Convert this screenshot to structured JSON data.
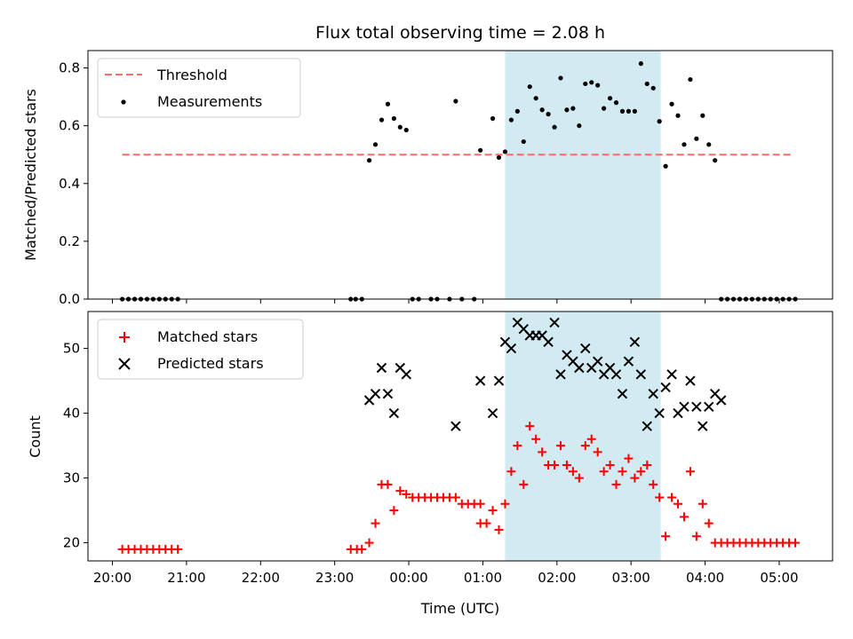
{
  "chart_data": [
    {
      "type": "scatter",
      "title": "Flux total observing time = 2.08 h",
      "xlabel": "",
      "ylabel": "Matched/Predicted stars",
      "ylim": [
        0,
        0.86
      ],
      "yticks": [
        0.0,
        0.2,
        0.4,
        0.6,
        0.8
      ],
      "ytick_labels": [
        "0.0",
        "0.2",
        "0.4",
        "0.6",
        "0.8"
      ],
      "xlim_hours": [
        19.67,
        29.72
      ],
      "highlight_span": [
        "01:18",
        "03:24"
      ],
      "highlight_color": "#add8e6",
      "legend_position": "upper-left",
      "threshold": {
        "name": "Threshold",
        "value": 0.5,
        "x_range": [
          "20:08",
          "05:12"
        ],
        "color": "#ff6b6b"
      },
      "series": [
        {
          "name": "Measurements",
          "color": "#000000",
          "points": [
            [
              "20:08",
              0
            ],
            [
              "20:13",
              0
            ],
            [
              "20:18",
              0
            ],
            [
              "20:23",
              0
            ],
            [
              "20:28",
              0
            ],
            [
              "20:33",
              0
            ],
            [
              "20:38",
              0
            ],
            [
              "20:43",
              0
            ],
            [
              "20:48",
              0
            ],
            [
              "20:53",
              0
            ],
            [
              "23:13",
              0
            ],
            [
              "23:17",
              0
            ],
            [
              "23:22",
              0
            ],
            [
              "23:28",
              0.48
            ],
            [
              "23:33",
              0.535
            ],
            [
              "23:38",
              0.62
            ],
            [
              "23:43",
              0.675
            ],
            [
              "23:48",
              0.625
            ],
            [
              "23:53",
              0.595
            ],
            [
              "23:58",
              0.585
            ],
            [
              "00:03",
              0
            ],
            [
              "00:08",
              0
            ],
            [
              "00:18",
              0
            ],
            [
              "00:23",
              0
            ],
            [
              "00:33",
              0
            ],
            [
              "00:43",
              0
            ],
            [
              "00:53",
              0
            ],
            [
              "00:38",
              0.685
            ],
            [
              "00:58",
              0.515
            ],
            [
              "01:08",
              0.625
            ],
            [
              "01:13",
              0.49
            ],
            [
              "01:18",
              0.51
            ],
            [
              "01:23",
              0.62
            ],
            [
              "01:28",
              0.65
            ],
            [
              "01:33",
              0.545
            ],
            [
              "01:38",
              0.735
            ],
            [
              "01:43",
              0.695
            ],
            [
              "01:48",
              0.655
            ],
            [
              "01:53",
              0.64
            ],
            [
              "01:58",
              0.595
            ],
            [
              "02:03",
              0.765
            ],
            [
              "02:08",
              0.655
            ],
            [
              "02:13",
              0.66
            ],
            [
              "02:18",
              0.6
            ],
            [
              "02:23",
              0.745
            ],
            [
              "02:28",
              0.75
            ],
            [
              "02:33",
              0.74
            ],
            [
              "02:38",
              0.66
            ],
            [
              "02:43",
              0.695
            ],
            [
              "02:48",
              0.68
            ],
            [
              "02:53",
              0.65
            ],
            [
              "02:58",
              0.65
            ],
            [
              "03:03",
              0.65
            ],
            [
              "03:08",
              0.815
            ],
            [
              "03:13",
              0.745
            ],
            [
              "03:18",
              0.73
            ],
            [
              "03:23",
              0.615
            ],
            [
              "03:28",
              0.46
            ],
            [
              "03:33",
              0.675
            ],
            [
              "03:38",
              0.635
            ],
            [
              "03:43",
              0.535
            ],
            [
              "03:48",
              0.76
            ],
            [
              "03:53",
              0.555
            ],
            [
              "03:58",
              0.635
            ],
            [
              "04:03",
              0.535
            ],
            [
              "04:08",
              0.48
            ],
            [
              "04:13",
              0
            ],
            [
              "04:18",
              0
            ],
            [
              "04:23",
              0
            ],
            [
              "04:28",
              0
            ],
            [
              "04:33",
              0
            ],
            [
              "04:38",
              0
            ],
            [
              "04:43",
              0
            ],
            [
              "04:48",
              0
            ],
            [
              "04:53",
              0
            ],
            [
              "04:58",
              0
            ],
            [
              "05:03",
              0
            ],
            [
              "05:08",
              0
            ],
            [
              "05:13",
              0
            ]
          ]
        }
      ]
    },
    {
      "type": "scatter",
      "title": "",
      "xlabel": "Time (UTC)",
      "ylabel": "Count",
      "ylim": [
        17.2,
        55.7
      ],
      "yticks": [
        20,
        30,
        40,
        50
      ],
      "ytick_labels": [
        "20",
        "30",
        "40",
        "50"
      ],
      "xlim_hours": [
        19.67,
        29.72
      ],
      "xticks": [
        "20:00",
        "21:00",
        "22:00",
        "23:00",
        "00:00",
        "01:00",
        "02:00",
        "03:00",
        "04:00",
        "05:00"
      ],
      "highlight_span": [
        "01:18",
        "03:24"
      ],
      "highlight_color": "#add8e6",
      "legend_position": "upper-left",
      "series": [
        {
          "name": "Matched stars",
          "marker": "plus",
          "color": "#ff0000",
          "points": [
            [
              "20:08",
              19
            ],
            [
              "20:13",
              19
            ],
            [
              "20:18",
              19
            ],
            [
              "20:23",
              19
            ],
            [
              "20:28",
              19
            ],
            [
              "20:33",
              19
            ],
            [
              "20:38",
              19
            ],
            [
              "20:43",
              19
            ],
            [
              "20:48",
              19
            ],
            [
              "20:53",
              19
            ],
            [
              "23:13",
              19
            ],
            [
              "23:18",
              19
            ],
            [
              "23:22",
              19
            ],
            [
              "23:28",
              20
            ],
            [
              "23:33",
              23
            ],
            [
              "23:38",
              29
            ],
            [
              "23:43",
              29
            ],
            [
              "23:48",
              25
            ],
            [
              "23:53",
              28
            ],
            [
              "23:58",
              27.5
            ],
            [
              "00:03",
              27
            ],
            [
              "00:08",
              27
            ],
            [
              "00:13",
              27
            ],
            [
              "00:18",
              27
            ],
            [
              "00:23",
              27
            ],
            [
              "00:28",
              27
            ],
            [
              "00:33",
              27
            ],
            [
              "00:38",
              27
            ],
            [
              "00:43",
              26
            ],
            [
              "00:48",
              26
            ],
            [
              "00:53",
              26
            ],
            [
              "00:58",
              26
            ],
            [
              "00:58",
              23
            ],
            [
              "01:03",
              23
            ],
            [
              "01:08",
              25
            ],
            [
              "01:13",
              22
            ],
            [
              "01:18",
              26
            ],
            [
              "01:23",
              31
            ],
            [
              "01:28",
              35
            ],
            [
              "01:33",
              29
            ],
            [
              "01:38",
              38
            ],
            [
              "01:43",
              36
            ],
            [
              "01:48",
              34
            ],
            [
              "01:53",
              32
            ],
            [
              "01:58",
              32
            ],
            [
              "02:03",
              35
            ],
            [
              "02:08",
              32
            ],
            [
              "02:13",
              31
            ],
            [
              "02:18",
              30
            ],
            [
              "02:23",
              35
            ],
            [
              "02:28",
              36
            ],
            [
              "02:33",
              34
            ],
            [
              "02:38",
              31
            ],
            [
              "02:43",
              32
            ],
            [
              "02:48",
              29
            ],
            [
              "02:53",
              31
            ],
            [
              "02:58",
              33
            ],
            [
              "03:03",
              30
            ],
            [
              "03:08",
              31
            ],
            [
              "03:13",
              32
            ],
            [
              "03:18",
              29
            ],
            [
              "03:23",
              27
            ],
            [
              "03:28",
              21
            ],
            [
              "03:33",
              27
            ],
            [
              "03:38",
              26
            ],
            [
              "03:43",
              24
            ],
            [
              "03:48",
              31
            ],
            [
              "03:53",
              21
            ],
            [
              "03:58",
              26
            ],
            [
              "04:03",
              23
            ],
            [
              "04:08",
              20
            ],
            [
              "04:13",
              20
            ],
            [
              "04:18",
              20
            ],
            [
              "04:23",
              20
            ],
            [
              "04:28",
              20
            ],
            [
              "04:33",
              20
            ],
            [
              "04:38",
              20
            ],
            [
              "04:43",
              20
            ],
            [
              "04:48",
              20
            ],
            [
              "04:53",
              20
            ],
            [
              "04:58",
              20
            ],
            [
              "05:03",
              20
            ],
            [
              "05:08",
              20
            ],
            [
              "05:13",
              20
            ]
          ]
        },
        {
          "name": "Predicted stars",
          "marker": "x",
          "color": "#000000",
          "points": [
            [
              "23:28",
              42
            ],
            [
              "23:33",
              43
            ],
            [
              "23:38",
              47
            ],
            [
              "23:43",
              43
            ],
            [
              "23:48",
              40
            ],
            [
              "23:53",
              47
            ],
            [
              "23:58",
              46
            ],
            [
              "00:38",
              38
            ],
            [
              "00:58",
              45
            ],
            [
              "01:08",
              40
            ],
            [
              "01:13",
              45
            ],
            [
              "01:18",
              51
            ],
            [
              "01:23",
              50
            ],
            [
              "01:28",
              54
            ],
            [
              "01:33",
              53
            ],
            [
              "01:38",
              52
            ],
            [
              "01:43",
              52
            ],
            [
              "01:48",
              52
            ],
            [
              "01:53",
              51
            ],
            [
              "01:58",
              54
            ],
            [
              "02:03",
              46
            ],
            [
              "02:08",
              49
            ],
            [
              "02:13",
              48
            ],
            [
              "02:18",
              47
            ],
            [
              "02:23",
              50
            ],
            [
              "02:28",
              47
            ],
            [
              "02:33",
              48
            ],
            [
              "02:38",
              46
            ],
            [
              "02:43",
              47
            ],
            [
              "02:48",
              46
            ],
            [
              "02:53",
              43
            ],
            [
              "02:58",
              48
            ],
            [
              "03:03",
              51
            ],
            [
              "03:08",
              46
            ],
            [
              "03:13",
              38
            ],
            [
              "03:18",
              43
            ],
            [
              "03:23",
              40
            ],
            [
              "03:28",
              44
            ],
            [
              "03:33",
              46
            ],
            [
              "03:38",
              40
            ],
            [
              "03:43",
              41
            ],
            [
              "03:48",
              45
            ],
            [
              "03:53",
              41
            ],
            [
              "03:58",
              38
            ],
            [
              "04:03",
              41
            ],
            [
              "04:08",
              43
            ],
            [
              "04:13",
              42
            ]
          ]
        }
      ]
    }
  ]
}
